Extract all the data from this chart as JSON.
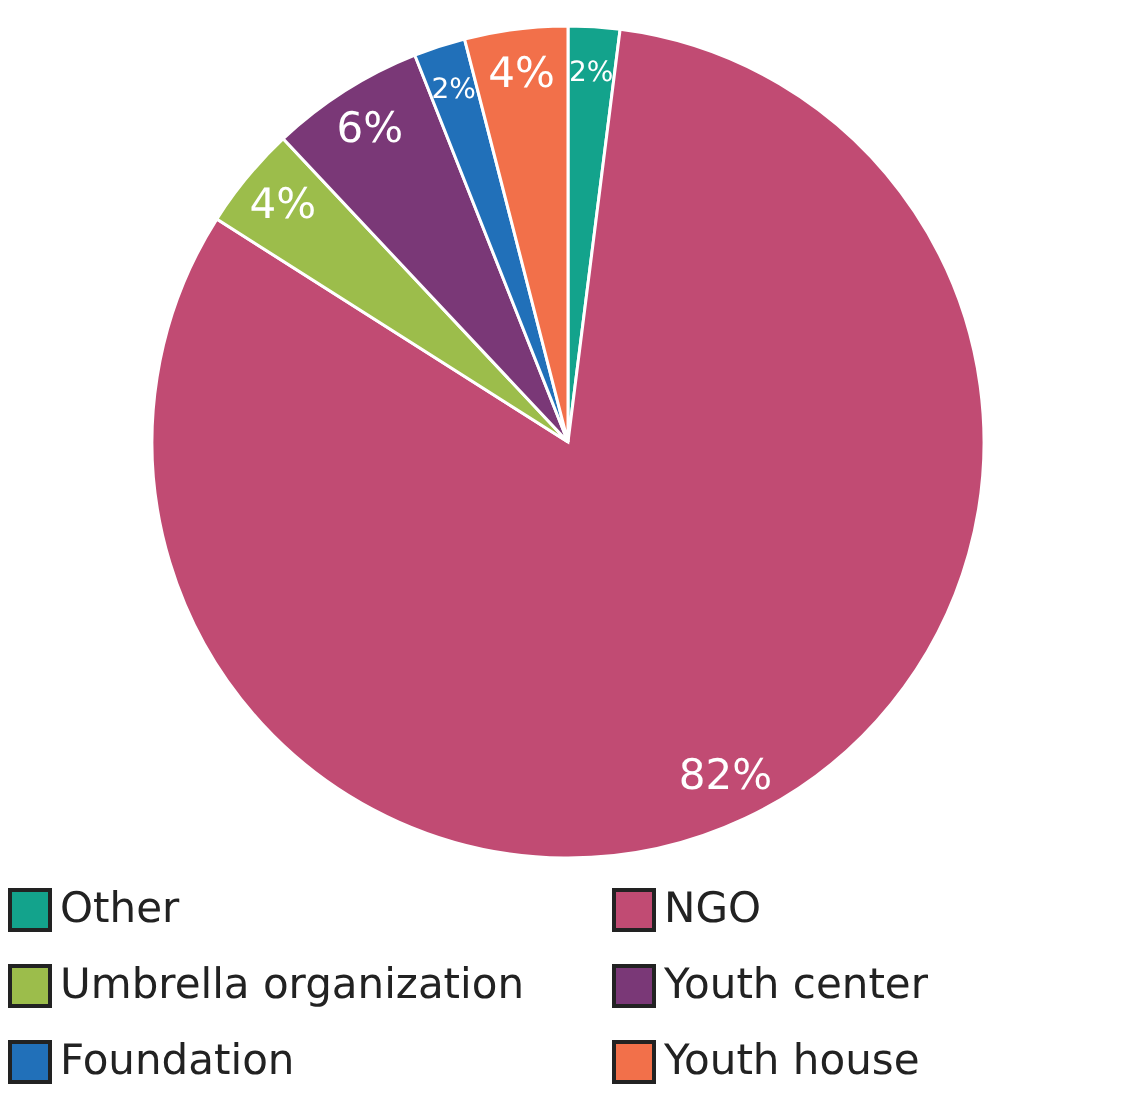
{
  "chart_data": {
    "type": "pie",
    "categories": [
      "Other",
      "NGO",
      "Umbrella organization",
      "Youth center",
      "Foundation",
      "Youth house"
    ],
    "values": [
      2,
      82,
      4,
      6,
      2,
      4
    ],
    "colors": [
      "#13a38c",
      "#c14b73",
      "#9cbd4b",
      "#7a3877",
      "#2170b9",
      "#f2704a"
    ],
    "value_labels": [
      "2%",
      "82%",
      "4%",
      "6%",
      "2%",
      "4%"
    ],
    "legend": "bottom"
  }
}
